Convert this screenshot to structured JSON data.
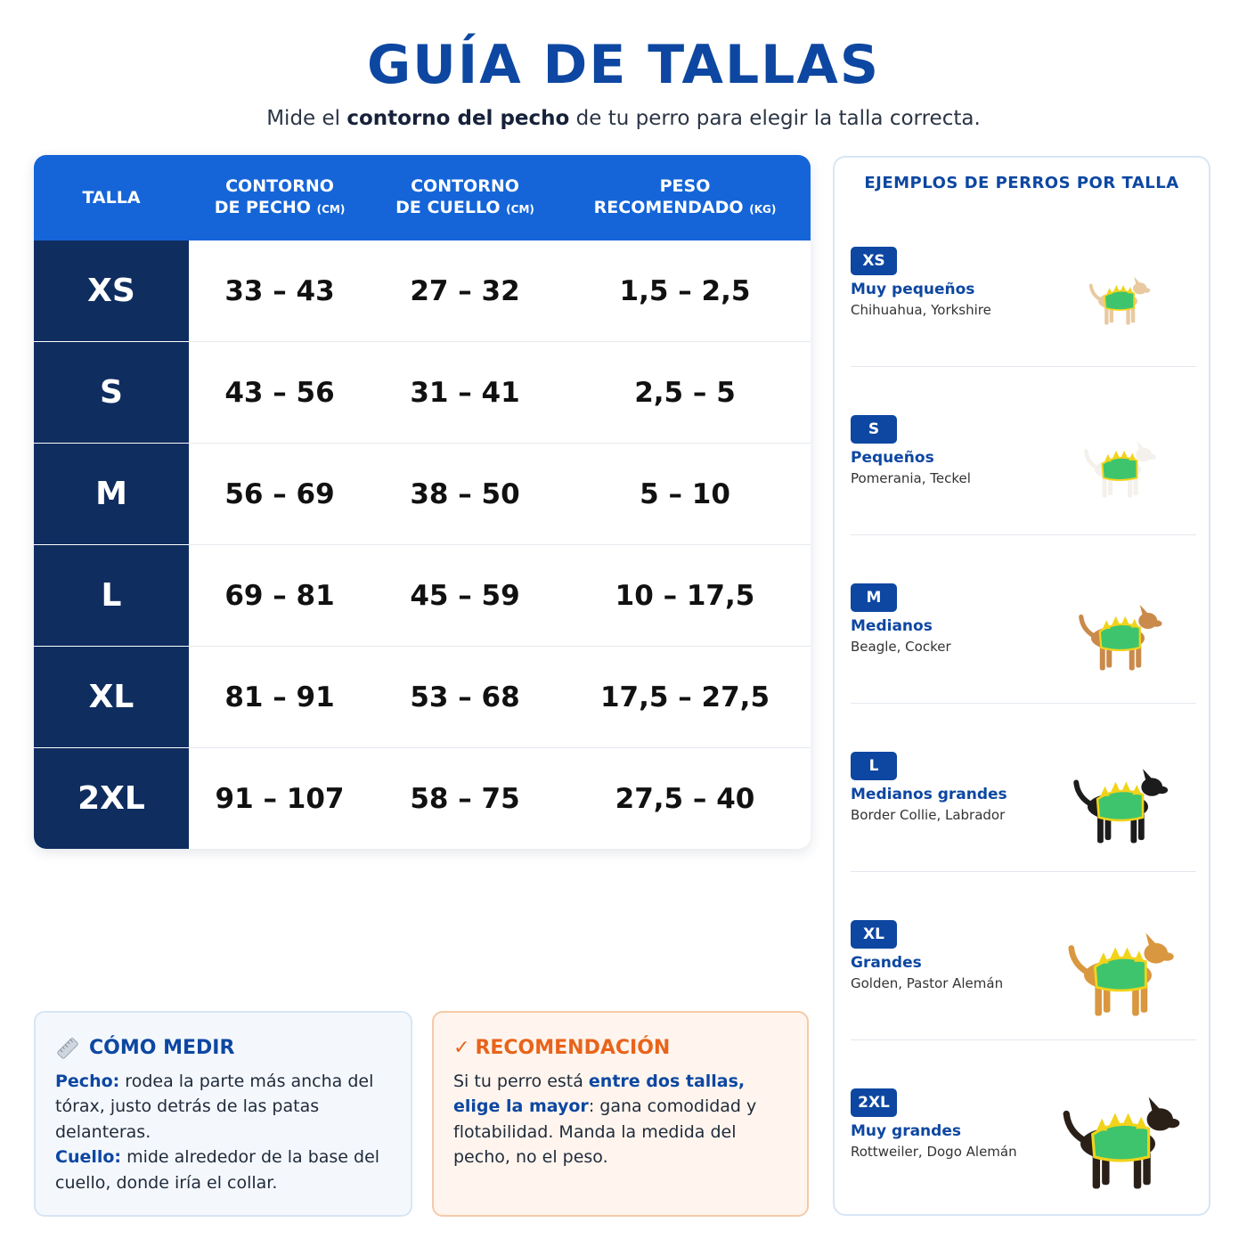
{
  "header": {
    "title": "GUÍA DE TALLAS",
    "subtitle": [
      "Mide el ",
      {
        "b": "contorno del pecho"
      },
      " de tu perro para elegir la talla correcta."
    ]
  },
  "table": {
    "headers": [
      {
        "text": "TALLA"
      },
      {
        "text": "CONTORNO DE PECHO",
        "unit": "(CM)"
      },
      {
        "text": "CONTORNO DE CUELLO",
        "unit": "(CM)"
      },
      {
        "text": "PESO RECOMENDADO",
        "unit": "(KG)"
      }
    ],
    "rows": [
      [
        "XS",
        "33 – 43",
        "27 – 32",
        "1,5 – 2,5"
      ],
      [
        "S",
        "43 – 56",
        "31 – 41",
        "2,5 – 5"
      ],
      [
        "M",
        "56 – 69",
        "38 – 50",
        "5 – 10"
      ],
      [
        "L",
        "69 – 81",
        "45 – 59",
        "10 – 17,5"
      ],
      [
        "XL",
        "81 – 91",
        "53 – 68",
        "17,5 – 27,5"
      ],
      [
        "2XL",
        "91 – 107",
        "58 – 75",
        "27,5 – 40"
      ]
    ]
  },
  "examples": {
    "title": "EJEMPLOS DE PERROS POR TALLA",
    "items": [
      {
        "size": "XS",
        "label": "Muy pequeños",
        "breeds": "Chihuahua, Yorkshire"
      },
      {
        "size": "S",
        "label": "Pequeños",
        "breeds": "Pomerania, Teckel"
      },
      {
        "size": "M",
        "label": "Medianos",
        "breeds": "Beagle, Cocker"
      },
      {
        "size": "L",
        "label": "Medianos grandes",
        "breeds": "Border Collie, Labrador"
      },
      {
        "size": "XL",
        "label": "Grandes",
        "breeds": "Golden, Pastor Alemán"
      },
      {
        "size": "2XL",
        "label": "Muy grandes",
        "breeds": "Rottweiler, Dogo Alemán"
      }
    ]
  },
  "how_to_measure": {
    "title": "CÓMO MEDIR",
    "paragraphs": [
      [
        {
          "b": "Pecho:"
        },
        " rodea la parte más ancha del tórax, justo detrás de las patas delanteras."
      ],
      [
        {
          "b": "Cuello:"
        },
        " mide alrededor de la base del cuello, donde iría el collar."
      ]
    ]
  },
  "recommendation": {
    "icon": "✓",
    "title": "RECOMENDACIÓN",
    "text": [
      "Si tu perro está ",
      {
        "b": "entre dos tallas, elige la mayor"
      },
      ": gana comodidad y flotabilidad. Manda la medida del pecho, no el peso."
    ]
  }
}
